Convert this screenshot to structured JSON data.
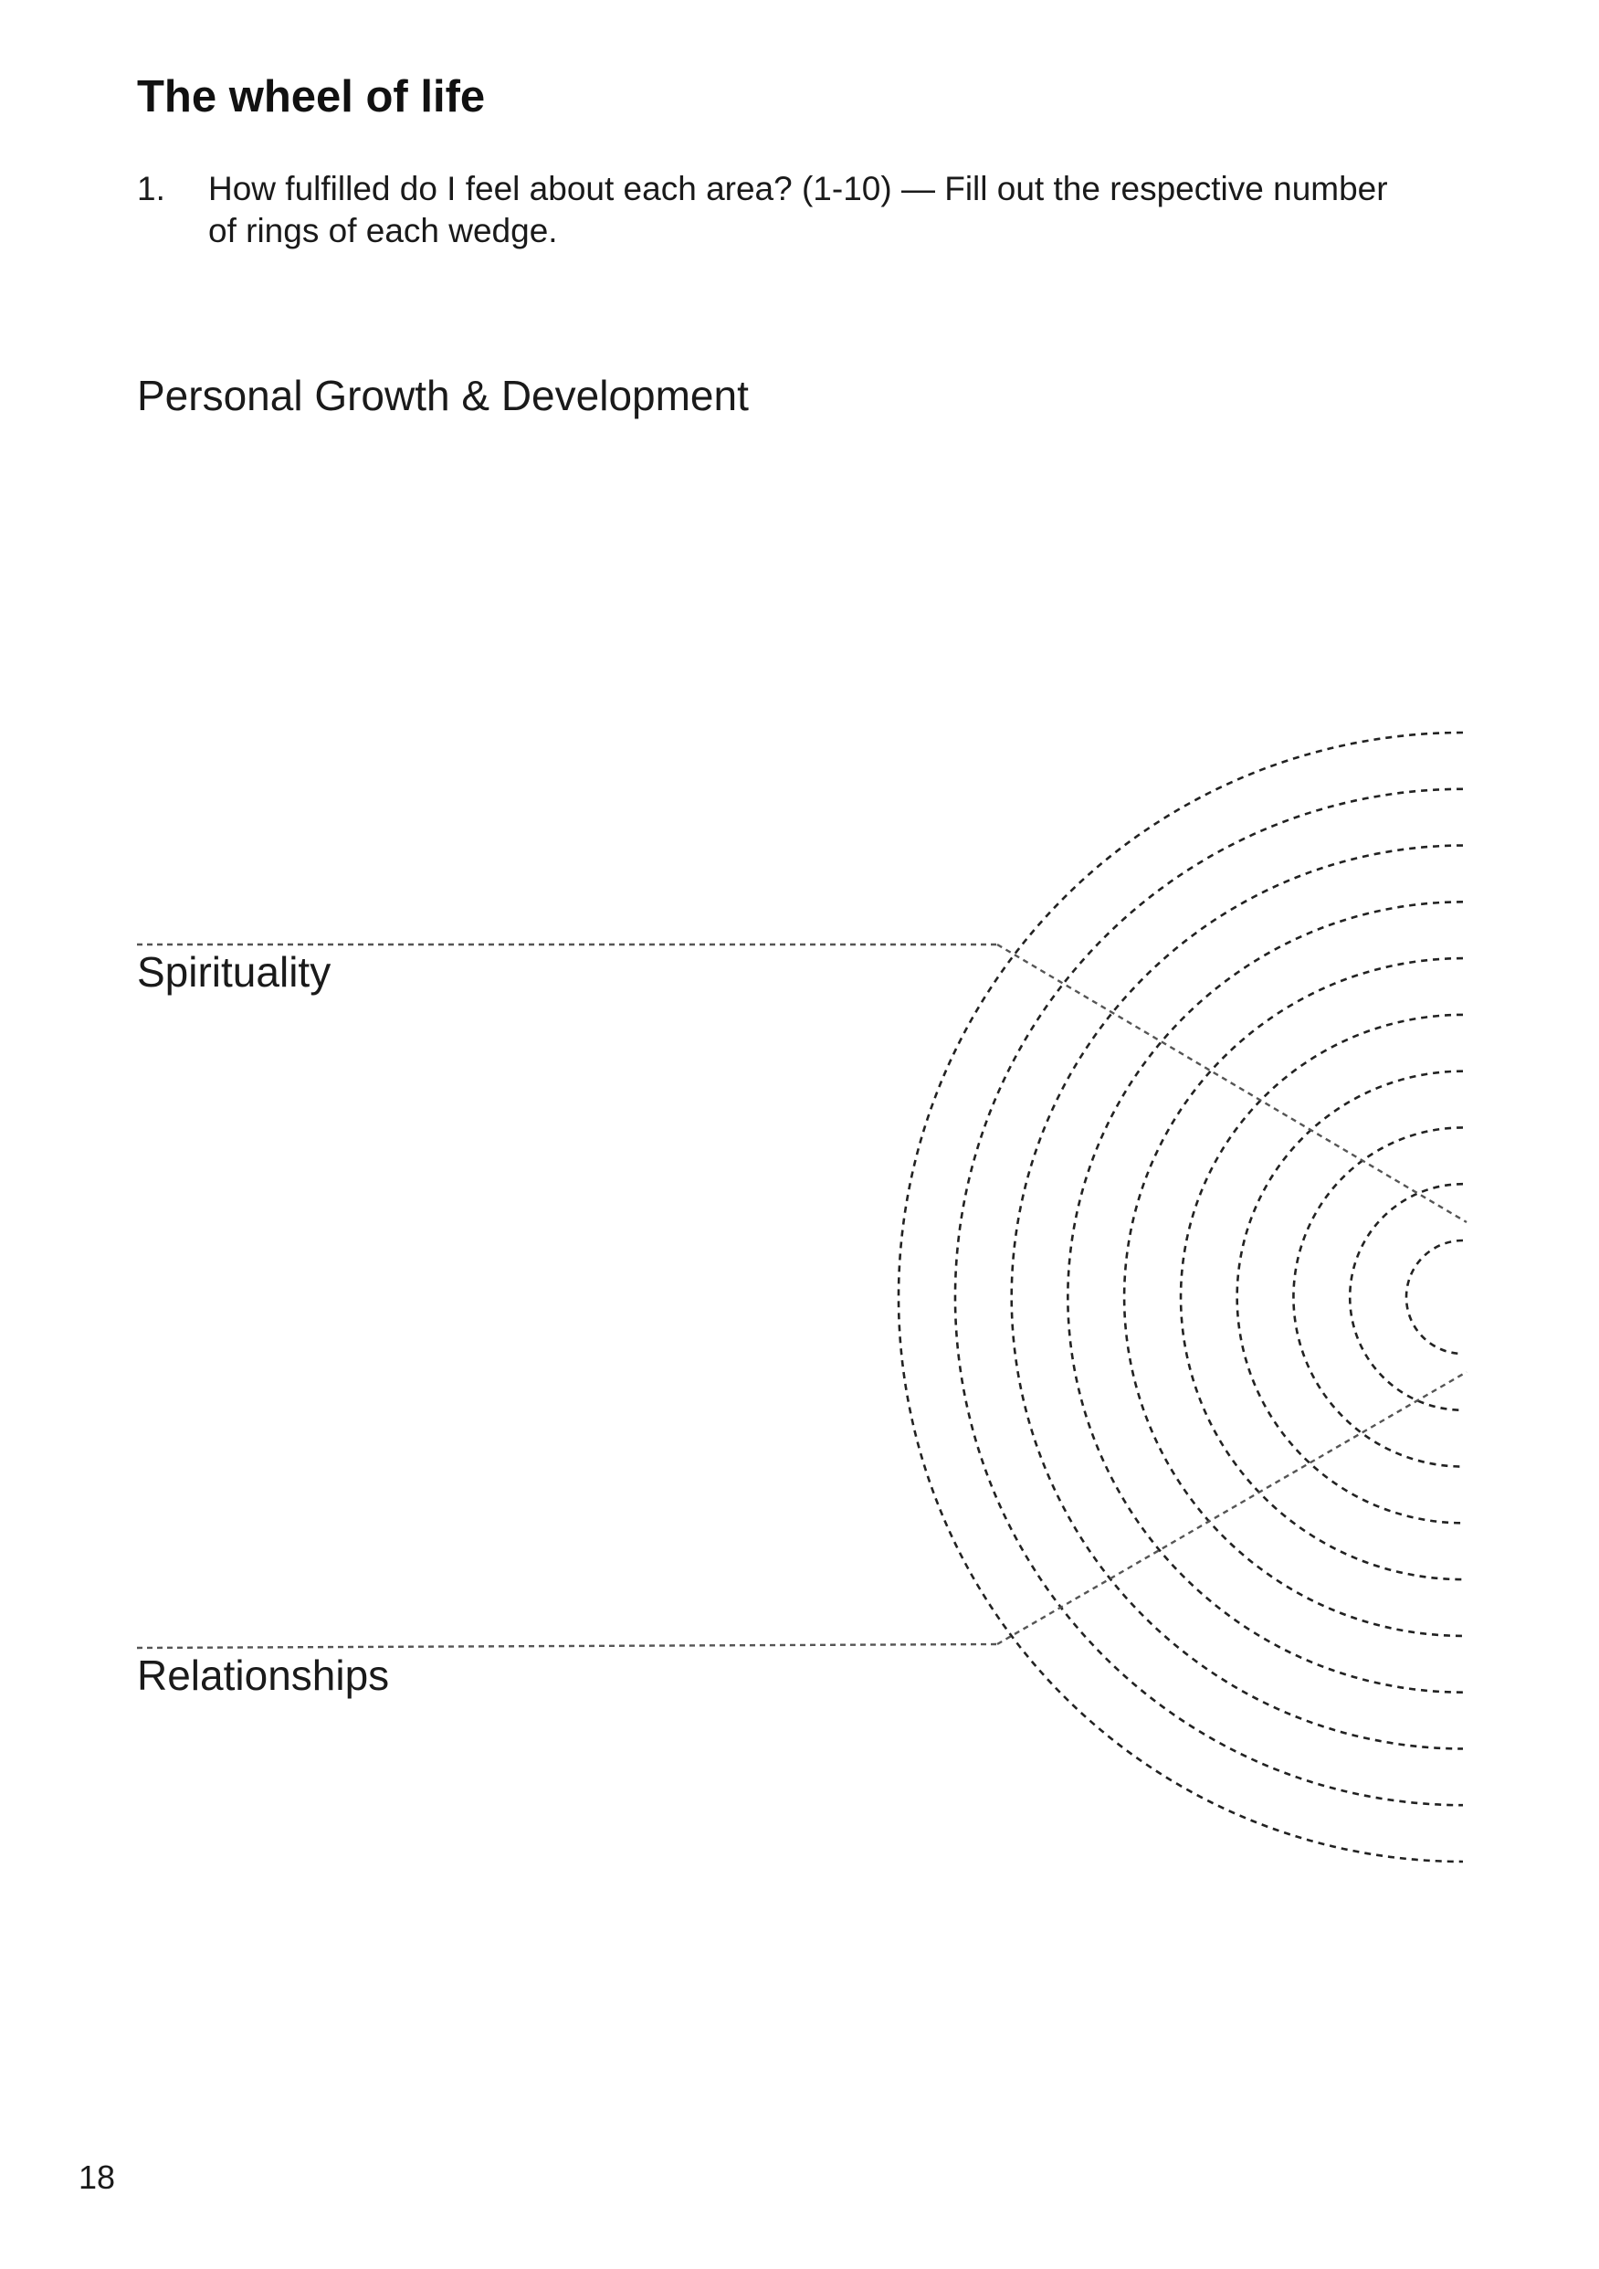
{
  "document": {
    "title": "The wheel of life",
    "instruction": {
      "number": "1.",
      "text": "How fulfilled do I feel about each area? (1-10) — Fill out the respective number of rings of each wedge."
    },
    "areas": [
      {
        "label": "Personal Growth & Development"
      },
      {
        "label": "Spirituality"
      },
      {
        "label": "Relationships"
      }
    ],
    "page_number": "18"
  },
  "wheel": {
    "ring_count": 10,
    "wedge_count": 3,
    "ring_stroke_color": "#222222",
    "divider_stroke_color": "#555555"
  }
}
